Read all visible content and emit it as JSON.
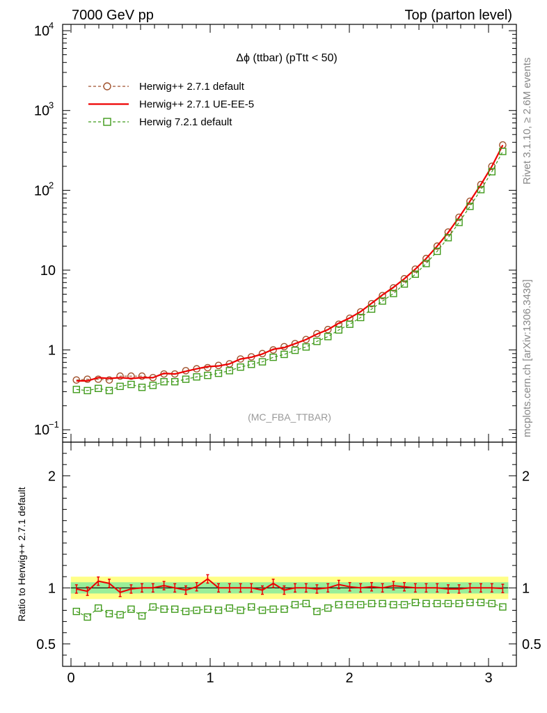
{
  "header": {
    "left": "7000 GeV pp",
    "right": "Top (parton level)"
  },
  "side_labels": {
    "rivet": "Rivet 3.1.10, ≥ 2.6M events",
    "mcplots": "mcplots.cern.ch [arXiv:1306.3436]"
  },
  "chart_data": [
    {
      "type": "line",
      "title": "Δϕ (ttbar) (pTtt < 50)",
      "watermark": "(MC_FBA_TTBAR)",
      "yscale": "log",
      "ylim": [
        0.07,
        12000
      ],
      "xlim": [
        -0.06,
        3.2
      ],
      "y_ticks": [
        {
          "value": 0.1,
          "label": "10",
          "exp": "−1"
        },
        {
          "value": 1,
          "label": "1",
          "exp": ""
        },
        {
          "value": 10,
          "label": "10",
          "exp": ""
        },
        {
          "value": 100,
          "label": "10",
          "exp": "2"
        },
        {
          "value": 1000,
          "label": "10",
          "exp": "3"
        },
        {
          "value": 10000,
          "label": "10",
          "exp": "4"
        }
      ],
      "legend_position": "top-left",
      "x": [
        0.039,
        0.118,
        0.196,
        0.275,
        0.353,
        0.432,
        0.51,
        0.589,
        0.668,
        0.746,
        0.825,
        0.903,
        0.982,
        1.06,
        1.139,
        1.218,
        1.296,
        1.375,
        1.453,
        1.532,
        1.61,
        1.689,
        1.767,
        1.846,
        1.924,
        2.003,
        2.081,
        2.16,
        2.238,
        2.317,
        2.395,
        2.474,
        2.552,
        2.631,
        2.71,
        2.788,
        2.867,
        2.945,
        3.024,
        3.102
      ],
      "series": [
        {
          "name": "Herwig++ 2.7.1 default",
          "color": "#a0522d",
          "style": "dashed-circle",
          "values": [
            0.42,
            0.43,
            0.43,
            0.42,
            0.47,
            0.47,
            0.47,
            0.45,
            0.5,
            0.5,
            0.55,
            0.58,
            0.6,
            0.64,
            0.67,
            0.77,
            0.82,
            0.9,
            1.0,
            1.1,
            1.2,
            1.35,
            1.6,
            1.8,
            2.1,
            2.5,
            3.0,
            3.8,
            4.8,
            6.0,
            7.8,
            10.3,
            14.0,
            20.0,
            30.0,
            46.0,
            73.0,
            118.0,
            200.0,
            370.0
          ]
        },
        {
          "name": "Herwig++ 2.7.1 UE-EE-5",
          "color": "#ee0000",
          "style": "solid",
          "values": [
            0.41,
            0.41,
            0.45,
            0.44,
            0.45,
            0.44,
            0.45,
            0.45,
            0.51,
            0.5,
            0.54,
            0.58,
            0.62,
            0.63,
            0.67,
            0.77,
            0.81,
            0.89,
            1.02,
            1.07,
            1.2,
            1.35,
            1.58,
            1.8,
            2.17,
            2.52,
            3.02,
            3.85,
            4.9,
            6.1,
            7.8,
            10.3,
            14.0,
            20.0,
            29.6,
            45.9,
            73.2,
            118.0,
            200.0,
            368.0
          ]
        },
        {
          "name": "Herwig 7.2.1 default",
          "color": "#3f9a1a",
          "style": "dashed-square",
          "values": [
            0.32,
            0.31,
            0.33,
            0.31,
            0.35,
            0.37,
            0.34,
            0.36,
            0.4,
            0.4,
            0.43,
            0.46,
            0.48,
            0.51,
            0.55,
            0.61,
            0.66,
            0.71,
            0.81,
            0.88,
            0.99,
            1.09,
            1.28,
            1.47,
            1.78,
            2.1,
            2.55,
            3.25,
            4.1,
            5.1,
            6.7,
            8.9,
            12.1,
            17.2,
            25.5,
            39.6,
            63.0,
            102.0,
            171.0,
            307.0
          ]
        }
      ]
    },
    {
      "type": "line",
      "ylabel": "Ratio to Herwig++ 2.7.1 default",
      "ylim": [
        0.3,
        2.3
      ],
      "xlim": [
        -0.06,
        3.2
      ],
      "x_ticks": [
        0,
        1,
        2,
        3
      ],
      "y_ticks": [
        0.5,
        1,
        2
      ],
      "band_inner": 0.05,
      "band_outer": 0.1,
      "series": [
        {
          "name": "Herwig++ 2.7.1 UE-EE-5",
          "color": "#ee0000",
          "values": [
            0.99,
            0.97,
            1.06,
            1.04,
            0.96,
            0.99,
            1.0,
            1.0,
            1.02,
            1.0,
            0.98,
            1.01,
            1.08,
            1.0,
            1.0,
            1.0,
            1.0,
            0.98,
            1.04,
            0.98,
            1.0,
            1.0,
            0.99,
            1.0,
            1.03,
            1.01,
            1.0,
            1.01,
            1.0,
            1.02,
            1.01,
            1.0,
            1.0,
            1.0,
            0.99,
            0.99,
            1.0,
            1.0,
            1.0,
            0.995
          ]
        },
        {
          "name": "Herwig 7.2.1 default",
          "color": "#3f9a1a",
          "values": [
            0.79,
            0.74,
            0.82,
            0.77,
            0.76,
            0.81,
            0.75,
            0.83,
            0.81,
            0.81,
            0.79,
            0.8,
            0.81,
            0.8,
            0.82,
            0.8,
            0.83,
            0.8,
            0.81,
            0.81,
            0.85,
            0.86,
            0.79,
            0.82,
            0.85,
            0.85,
            0.85,
            0.86,
            0.86,
            0.85,
            0.85,
            0.87,
            0.86,
            0.86,
            0.86,
            0.86,
            0.87,
            0.87,
            0.86,
            0.83
          ]
        }
      ]
    }
  ]
}
